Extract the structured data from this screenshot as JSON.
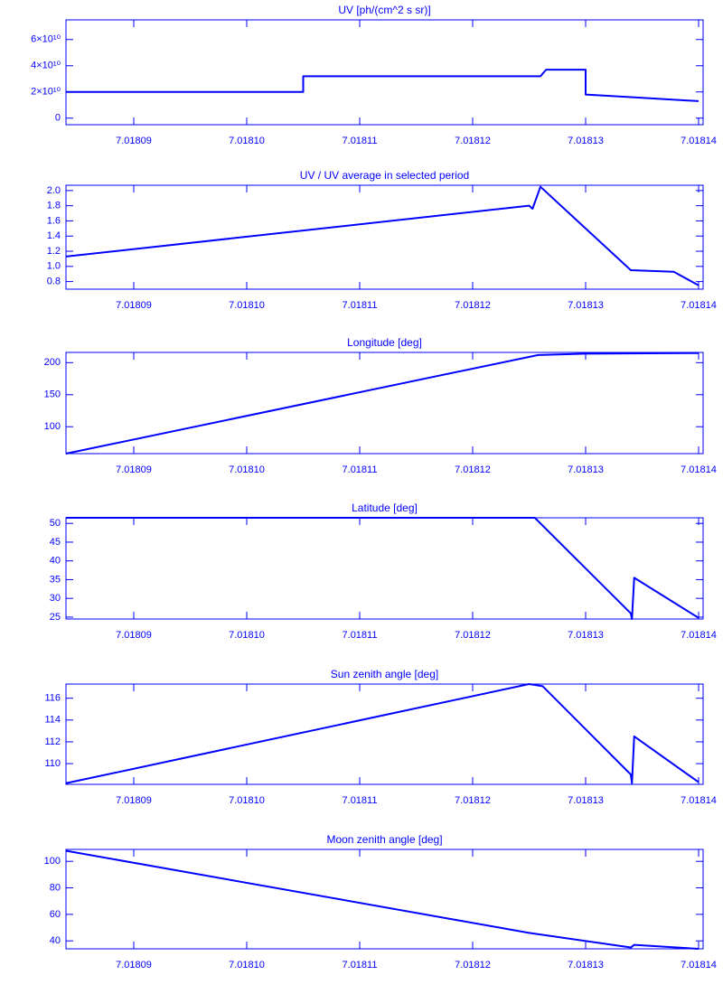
{
  "chart_data": [
    {
      "type": "line",
      "title": "UV [ph/(cm^2 s sr)]",
      "color": "#0000ff",
      "x": [
        7.018084,
        7.018105,
        7.018105,
        7.018126,
        7.0181265,
        7.01813,
        7.01813,
        7.018134,
        7.01814
      ],
      "values": [
        20000000000,
        20000000000,
        32000000000,
        32000000000,
        37000000000,
        37000000000,
        18000000000,
        16000000000,
        13000000000
      ],
      "xlim": [
        7.018084,
        7.0181404
      ],
      "ylim": [
        -5000000000,
        75000000000
      ],
      "xticks": [
        7.01809,
        {
          "value": 7.0181,
          "label": "7.01810"
        },
        7.01811,
        7.01812,
        7.01813,
        7.01814
      ],
      "yticks": [
        0,
        {
          "value": 20000000000,
          "label": "2×10¹⁰"
        },
        {
          "value": 40000000000,
          "label": "4×10¹⁰"
        },
        {
          "value": 60000000000,
          "label": "6×10¹⁰"
        }
      ]
    },
    {
      "type": "line",
      "title": "UV / UV average in selected period",
      "color": "#0000ff",
      "x": [
        7.018084,
        7.018125,
        7.0181253,
        7.018126,
        7.018134,
        7.0181378,
        7.01814
      ],
      "values": [
        1.13,
        1.8,
        1.76,
        2.05,
        0.95,
        0.93,
        0.75
      ],
      "xlim": [
        7.018084,
        7.0181404
      ],
      "ylim": [
        0.7,
        2.07
      ],
      "xticks": [
        7.01809,
        {
          "value": 7.0181,
          "label": "7.01810"
        },
        7.01811,
        7.01812,
        7.01813,
        7.01814
      ],
      "yticks": [
        0.8,
        {
          "value": 1,
          "label": "1.0"
        },
        1.2,
        1.4,
        1.6,
        1.8,
        {
          "value": 2,
          "label": "2.0"
        }
      ]
    },
    {
      "type": "line",
      "title": "Longitude [deg]",
      "color": "#0000ff",
      "x": [
        7.018084,
        7.0181258,
        7.01813,
        7.01814
      ],
      "values": [
        58,
        212,
        214,
        215
      ],
      "xlim": [
        7.018084,
        7.0181404
      ],
      "ylim": [
        58,
        216
      ],
      "xticks": [
        7.01809,
        {
          "value": 7.0181,
          "label": "7.01810"
        },
        7.01811,
        7.01812,
        7.01813,
        7.01814
      ],
      "yticks": [
        100,
        150,
        200
      ]
    },
    {
      "type": "line",
      "title": "Latitude [deg]",
      "color": "#0000ff",
      "x": [
        7.018084,
        7.0181255,
        7.018134,
        7.0181341,
        7.0181343,
        7.01814
      ],
      "values": [
        51.5,
        51.5,
        26,
        24.5,
        35.5,
        24.8
      ],
      "xlim": [
        7.018084,
        7.0181404
      ],
      "ylim": [
        24.5,
        51.5
      ],
      "xticks": [
        7.01809,
        {
          "value": 7.0181,
          "label": "7.01810"
        },
        7.01811,
        7.01812,
        7.01813,
        7.01814
      ],
      "yticks": [
        25,
        30,
        35,
        40,
        45,
        50
      ]
    },
    {
      "type": "line",
      "title": "Sun zenith angle [deg]",
      "color": "#0000ff",
      "x": [
        7.018084,
        7.018125,
        7.0181262,
        7.018134,
        7.0181341,
        7.0181343,
        7.01814
      ],
      "values": [
        108.2,
        117.3,
        117.1,
        109,
        108.2,
        112.5,
        108.3
      ],
      "xlim": [
        7.018084,
        7.0181404
      ],
      "ylim": [
        108.1,
        117.3
      ],
      "xticks": [
        7.01809,
        {
          "value": 7.0181,
          "label": "7.01810"
        },
        7.01811,
        7.01812,
        7.01813,
        7.01814
      ],
      "yticks": [
        110,
        112,
        114,
        116
      ]
    },
    {
      "type": "line",
      "title": "Moon zenith angle [deg]",
      "color": "#0000ff",
      "x": [
        7.018084,
        7.018125,
        7.018134,
        7.0181343,
        7.01814
      ],
      "values": [
        108,
        46,
        35,
        37,
        34
      ],
      "xlim": [
        7.018084,
        7.0181404
      ],
      "ylim": [
        34,
        109
      ],
      "xticks": [
        7.01809,
        {
          "value": 7.0181,
          "label": "7.01810"
        },
        7.01811,
        7.01812,
        7.01813,
        7.01814
      ],
      "yticks": [
        40,
        60,
        80,
        100
      ]
    }
  ]
}
